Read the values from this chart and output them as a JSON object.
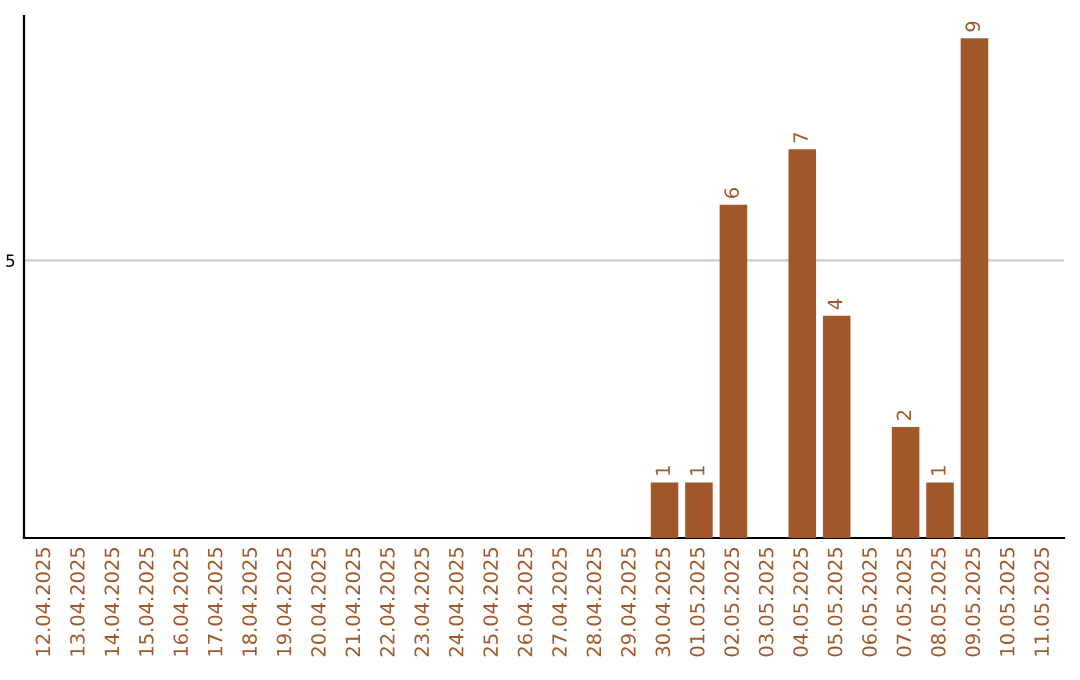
{
  "chart_data": {
    "type": "bar",
    "categories": [
      "12.04.2025",
      "13.04.2025",
      "14.04.2025",
      "15.04.2025",
      "16.04.2025",
      "17.04.2025",
      "18.04.2025",
      "19.04.2025",
      "20.04.2025",
      "21.04.2025",
      "22.04.2025",
      "23.04.2025",
      "24.04.2025",
      "25.04.2025",
      "26.04.2025",
      "27.04.2025",
      "28.04.2025",
      "29.04.2025",
      "30.04.2025",
      "01.05.2025",
      "02.05.2025",
      "03.05.2025",
      "04.05.2025",
      "05.05.2025",
      "06.05.2025",
      "07.05.2025",
      "08.05.2025",
      "09.05.2025",
      "10.05.2025",
      "11.05.2025"
    ],
    "values": [
      null,
      null,
      null,
      null,
      null,
      null,
      null,
      null,
      null,
      null,
      null,
      null,
      null,
      null,
      null,
      null,
      null,
      null,
      1,
      1,
      6,
      null,
      7,
      4,
      null,
      2,
      1,
      9,
      null,
      null
    ],
    "color": "#a0582a",
    "ylim": [
      0,
      9.4
    ],
    "yticks": [
      5
    ],
    "grid": "y",
    "data_labels": true,
    "legend": false
  }
}
